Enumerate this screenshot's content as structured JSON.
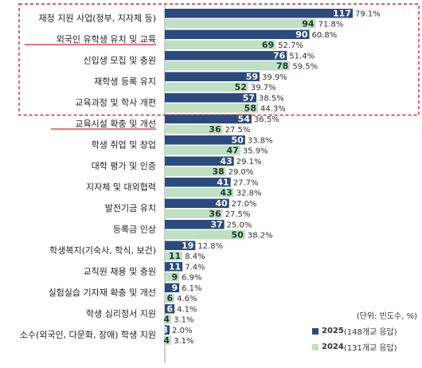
{
  "chart_data": {
    "type": "bar",
    "orientation": "horizontal",
    "title": "",
    "xlabel": "",
    "ylabel": "",
    "unit_note": "(단위: 빈도수, %)",
    "categories": [
      "재정 지원 사업(정부, 지자체 등)",
      "외국인 유학생 유치 및 교육",
      "신입생 모집 및 충원",
      "재학생 등록 유지",
      "교육과정 및 학사 개편",
      "교육시설 확충 및 개선",
      "학생 취업 및 창업",
      "대학 평가 및 인증",
      "지자체 및 대외협력",
      "발전기금 유치",
      "등록금 인상",
      "학생복지(기숙사, 학식, 보건)",
      "교직원 채용 및 충원",
      "실험실습 기자재 확충 및 개선",
      "학생 심리정서 지원",
      "소수(외국인, 다문화, 장애) 학생 지원"
    ],
    "series": [
      {
        "name": "2025",
        "legend_detail": "(148개교 응답)",
        "color": "#2b4a7e",
        "values": [
          117,
          90,
          76,
          59,
          57,
          54,
          50,
          43,
          41,
          40,
          37,
          19,
          11,
          9,
          6,
          3
        ],
        "percent_labels": [
          "79.1%",
          "60.8%",
          "51.4%",
          "39.9%",
          "38.5%",
          "36.5%",
          "33.8%",
          "29.1%",
          "27.7%",
          "27.0%",
          "25.0%",
          "12.8%",
          "7.4%",
          "6.1%",
          "4.1%",
          "2.0%"
        ]
      },
      {
        "name": "2024",
        "legend_detail": "(131개교 응답)",
        "color": "#bfe0c2",
        "values": [
          94,
          69,
          78,
          52,
          58,
          36,
          47,
          38,
          43,
          36,
          50,
          11,
          9,
          6,
          4,
          4
        ],
        "percent_labels": [
          "71.8%",
          "52.7%",
          "59.5%",
          "39.7%",
          "44.3%",
          "27.5%",
          "35.9%",
          "29.0%",
          "32.8%",
          "27.5%",
          "38.2%",
          "8.4%",
          "6.9%",
          "4.6%",
          "3.1%",
          "3.1%"
        ]
      }
    ],
    "xlim": [
      0,
      117
    ],
    "grid": false,
    "legend_position": "bottom-right",
    "highlight": {
      "box_first_n_categories": 5,
      "box_color": "#d9252a",
      "underlined_categories": [
        1,
        5
      ]
    }
  }
}
